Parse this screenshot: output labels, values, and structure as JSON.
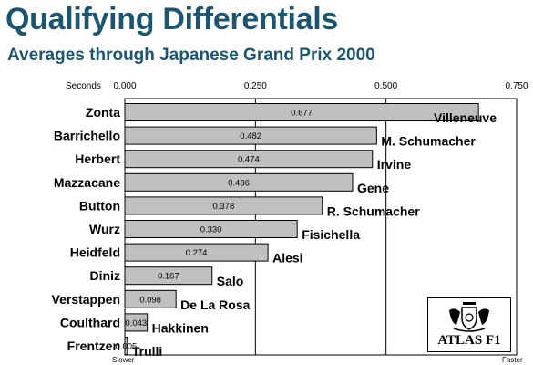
{
  "title": "Qualifying Differentials",
  "subtitle": "Averages through Japanese Grand Prix 2000",
  "logo_text": "ATLAS F1",
  "chart_data": {
    "type": "bar",
    "orientation": "horizontal",
    "axis_title": "Seconds",
    "xlim": [
      0,
      0.75
    ],
    "xticks": [
      "0.000",
      "0.250",
      "0.500",
      "0.750"
    ],
    "left_end_label": "Slower",
    "right_end_label": "Faster",
    "bar_color": "#c0c0c0",
    "grid": "vertical lines at 0.250 and 0.500",
    "categories": [
      "Zonta",
      "Barrichello",
      "Herbert",
      "Mazzacane",
      "Button",
      "Wurz",
      "Heidfeld",
      "Diniz",
      "Verstappen",
      "Coulthard",
      "Frentzen"
    ],
    "teammates": [
      "Villeneuve",
      "M. Schumacher",
      "Irvine",
      "Gene",
      "R. Schumacher",
      "Fisichella",
      "Alesi",
      "Salo",
      "De La Rosa",
      "Hakkinen",
      "Trulli"
    ],
    "values": [
      0.677,
      0.482,
      0.474,
      0.436,
      0.378,
      0.33,
      0.274,
      0.167,
      0.098,
      0.043,
      0.005
    ],
    "value_labels": [
      "0.677",
      "0.482",
      "0.474",
      "0.436",
      "0.378",
      "0.330",
      "0.274",
      "0.167",
      "0.098",
      "0.043",
      "0.005"
    ]
  }
}
